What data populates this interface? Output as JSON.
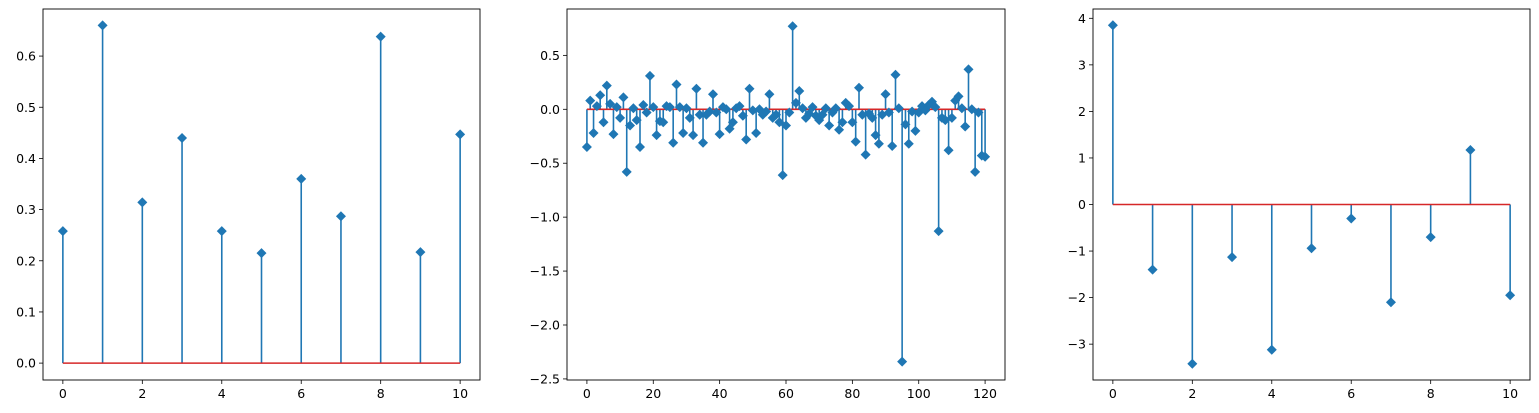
{
  "chart_data": [
    {
      "type": "stem",
      "marker": "diamond",
      "colors": {
        "stem": "#1f77b4",
        "marker": "#1f77b4",
        "baseline": "#d62728"
      },
      "baseline": 0,
      "xlim": [
        -0.5,
        10.5
      ],
      "ylim": [
        -0.033,
        0.692
      ],
      "xticks": [
        0,
        2,
        4,
        6,
        8,
        10
      ],
      "yticks": [
        0.0,
        0.1,
        0.2,
        0.3,
        0.4,
        0.5,
        0.6
      ],
      "ytick_format": 1,
      "x": [
        0,
        1,
        2,
        3,
        4,
        5,
        6,
        7,
        8,
        9,
        10
      ],
      "y": [
        0.258,
        0.66,
        0.314,
        0.44,
        0.258,
        0.215,
        0.36,
        0.287,
        0.638,
        0.217,
        0.447
      ]
    },
    {
      "type": "stem",
      "marker": "diamond",
      "colors": {
        "stem": "#1f77b4",
        "marker": "#1f77b4",
        "baseline": "#d62728"
      },
      "baseline": 0,
      "xlim": [
        -6,
        126
      ],
      "ylim": [
        -2.51,
        0.93
      ],
      "xticks": [
        0,
        20,
        40,
        60,
        80,
        100,
        120
      ],
      "yticks": [
        -2.5,
        -2.0,
        -1.5,
        -1.0,
        -0.5,
        0.0,
        0.5
      ],
      "ytick_format": 1,
      "x": [
        0,
        1,
        2,
        3,
        4,
        5,
        6,
        7,
        8,
        9,
        10,
        11,
        12,
        13,
        14,
        15,
        16,
        17,
        18,
        19,
        20,
        21,
        22,
        23,
        24,
        25,
        26,
        27,
        28,
        29,
        30,
        31,
        32,
        33,
        34,
        35,
        36,
        37,
        38,
        39,
        40,
        41,
        42,
        43,
        44,
        45,
        46,
        47,
        48,
        49,
        50,
        51,
        52,
        53,
        54,
        55,
        56,
        57,
        58,
        59,
        60,
        61,
        62,
        63,
        64,
        65,
        66,
        67,
        68,
        69,
        70,
        71,
        72,
        73,
        74,
        75,
        76,
        77,
        78,
        79,
        80,
        81,
        82,
        83,
        84,
        85,
        86,
        87,
        88,
        89,
        90,
        91,
        92,
        93,
        94,
        95,
        96,
        97,
        98,
        99,
        100,
        101,
        102,
        103,
        104,
        105,
        106,
        107,
        108,
        109,
        110,
        111,
        112,
        113,
        114,
        115,
        116,
        117,
        118,
        119,
        120
      ],
      "y": [
        -0.35,
        0.08,
        -0.22,
        0.03,
        0.13,
        -0.12,
        0.22,
        0.05,
        -0.23,
        0.02,
        -0.08,
        0.11,
        -0.58,
        -0.15,
        0.01,
        -0.1,
        -0.35,
        0.04,
        -0.03,
        0.31,
        0.02,
        -0.24,
        -0.11,
        -0.12,
        0.03,
        0.02,
        -0.31,
        0.23,
        0.02,
        -0.22,
        0.01,
        -0.08,
        -0.24,
        0.19,
        -0.05,
        -0.31,
        -0.05,
        -0.02,
        0.14,
        -0.03,
        -0.23,
        0.02,
        0.0,
        -0.18,
        -0.12,
        0.01,
        0.03,
        -0.06,
        -0.28,
        0.19,
        -0.01,
        -0.22,
        0.0,
        -0.05,
        -0.02,
        0.14,
        -0.08,
        -0.05,
        -0.12,
        -0.61,
        -0.15,
        -0.03,
        0.77,
        0.06,
        0.17,
        0.01,
        -0.08,
        -0.04,
        0.02,
        -0.06,
        -0.1,
        -0.05,
        0.01,
        -0.15,
        -0.03,
        0.01,
        -0.19,
        -0.12,
        0.06,
        0.03,
        -0.12,
        -0.3,
        0.2,
        -0.05,
        -0.42,
        -0.04,
        -0.08,
        -0.24,
        -0.32,
        -0.05,
        0.14,
        -0.03,
        -0.34,
        0.32,
        0.01,
        -2.34,
        -0.14,
        -0.32,
        -0.02,
        -0.2,
        -0.03,
        0.03,
        -0.01,
        0.04,
        0.07,
        0.02,
        -1.13,
        -0.08,
        -0.1,
        -0.38,
        -0.08,
        0.08,
        0.12,
        0.01,
        -0.16,
        0.37,
        0.0,
        -0.58,
        -0.03,
        -0.43,
        -0.44
      ]
    },
    {
      "type": "stem",
      "marker": "diamond",
      "colors": {
        "stem": "#1f77b4",
        "marker": "#1f77b4",
        "baseline": "#d62728"
      },
      "baseline": 0,
      "xlim": [
        -0.5,
        10.5
      ],
      "ylim": [
        -3.77,
        4.2
      ],
      "xticks": [
        0,
        2,
        4,
        6,
        8,
        10
      ],
      "yticks": [
        -3,
        -2,
        -1,
        0,
        1,
        2,
        3,
        4
      ],
      "ytick_format": 0,
      "x": [
        0,
        1,
        2,
        3,
        4,
        5,
        6,
        7,
        8,
        9,
        10
      ],
      "y": [
        3.85,
        -1.4,
        -3.42,
        -1.13,
        -3.12,
        -0.94,
        -0.3,
        -2.1,
        -0.7,
        1.17,
        -1.95
      ]
    }
  ]
}
